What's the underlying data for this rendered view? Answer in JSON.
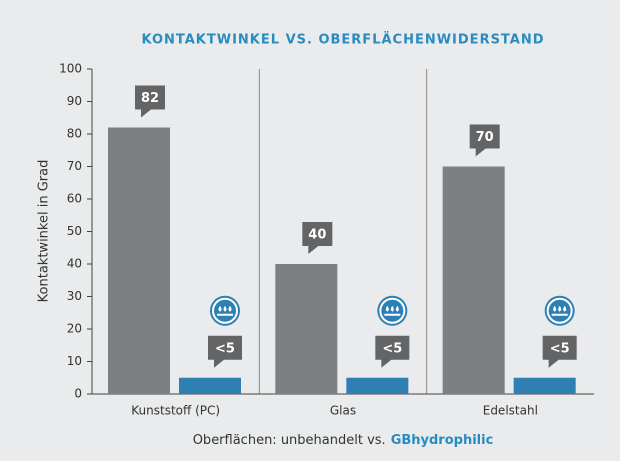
{
  "chart_data": {
    "type": "bar",
    "title": "KONTAKTWINKEL VS. OBERFLÄCHENWIDERSTAND",
    "ylabel": "Kontaktwinkel in Grad",
    "xlabel": [
      "Oberflächen: unbehandelt vs.",
      "GBhydrophilic"
    ],
    "categories": [
      "Kunststoff (PC)",
      "Glas",
      "Edelstahl"
    ],
    "series": [
      {
        "name": "unbehandelt",
        "color": "#7d7f82",
        "values": [
          82,
          40,
          70
        ]
      },
      {
        "name": "GBhydrophilic",
        "color": "#2e7fb3",
        "values": [
          5,
          5,
          5
        ],
        "value_labels": [
          "<5",
          "<5",
          "<5"
        ]
      }
    ],
    "ylim": [
      0,
      100
    ],
    "yticks": [
      0,
      10,
      20,
      30,
      40,
      50,
      60,
      70,
      80,
      90,
      100
    ]
  }
}
